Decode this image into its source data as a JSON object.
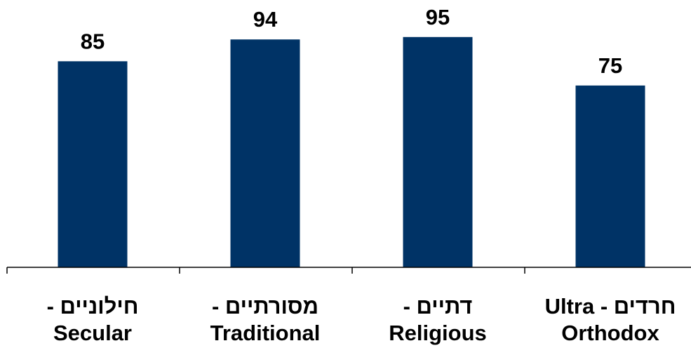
{
  "chart_data": {
    "type": "bar",
    "categories": [
      [
        "חילוניים -",
        "Secular"
      ],
      [
        "מסורתיים -",
        "Traditional"
      ],
      [
        "דתיים -",
        "Religious"
      ],
      [
        "חרדים - Ultra",
        "Orthodox"
      ]
    ],
    "values": [
      85,
      94,
      95,
      75
    ],
    "data_labels": [
      "85",
      "94",
      "95",
      "75"
    ],
    "bar_color": "#003366",
    "ylim": [
      0,
      100
    ],
    "grid": false,
    "legend": "none"
  }
}
